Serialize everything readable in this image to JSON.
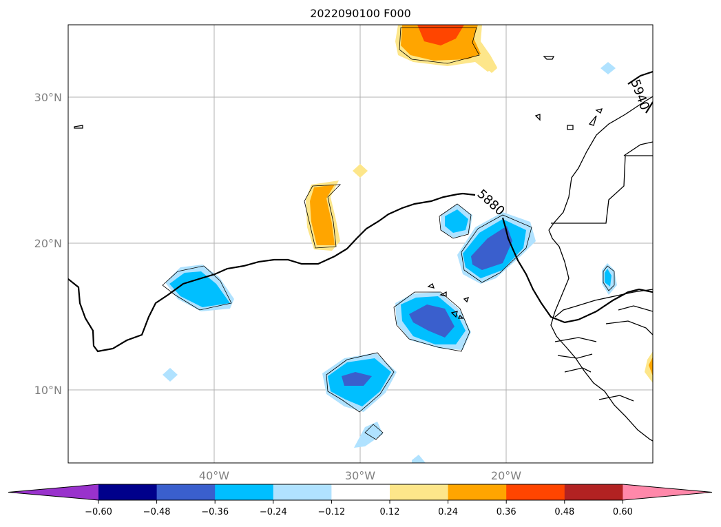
{
  "title": "2022090100 F000",
  "map": {
    "lat_labels": [
      "30°N",
      "20°N",
      "10°N"
    ],
    "lon_labels": [
      "40°W",
      "30°W",
      "20°W"
    ],
    "contour_labels": [
      "5880",
      "5940"
    ]
  },
  "colorbar": {
    "ticks": [
      "−0.60",
      "−0.48",
      "−0.36",
      "−0.24",
      "−0.12",
      "0.12",
      "0.24",
      "0.36",
      "0.48",
      "0.60"
    ],
    "colors": [
      "#9932cc",
      "#00008b",
      "#3a5fcd",
      "#00bfff",
      "#b0e2ff",
      "#ffffff",
      "#fde68a",
      "#ffa500",
      "#ff4500",
      "#b22222",
      "#ff88aa"
    ]
  }
}
